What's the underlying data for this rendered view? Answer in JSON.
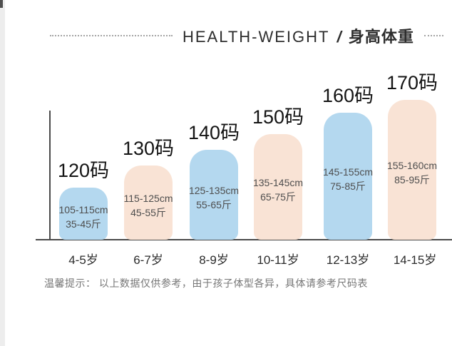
{
  "header": {
    "title_en": "HEALTH-WEIGHT",
    "separator": "/",
    "title_zh": "身高体重"
  },
  "chart_data": {
    "type": "bar",
    "title": "HEALTH-WEIGHT / 身高体重",
    "categories": [
      "4-5岁",
      "6-7岁",
      "8-9岁",
      "10-11岁",
      "12-13岁",
      "14-15岁"
    ],
    "values": [
      120,
      130,
      140,
      150,
      160,
      170
    ],
    "unit": "码",
    "legend": "none",
    "grid": false,
    "colors": {
      "blue": "#b4d8ef",
      "pink": "#f9e3d5",
      "axis": "#4a4a4a"
    },
    "bars": [
      {
        "size_label": "120码",
        "height_cm": "105-115cm",
        "weight_jin": "35-45斤",
        "age": "4-5岁",
        "fill": "#b4d8ef"
      },
      {
        "size_label": "130码",
        "height_cm": "115-125cm",
        "weight_jin": "45-55斤",
        "age": "6-7岁",
        "fill": "#f9e3d5"
      },
      {
        "size_label": "140码",
        "height_cm": "125-135cm",
        "weight_jin": "55-65斤",
        "age": "8-9岁",
        "fill": "#b4d8ef"
      },
      {
        "size_label": "150码",
        "height_cm": "135-145cm",
        "weight_jin": "65-75斤",
        "age": "10-11岁",
        "fill": "#f9e3d5"
      },
      {
        "size_label": "160码",
        "height_cm": "145-155cm",
        "weight_jin": "75-85斤",
        "age": "12-13岁",
        "fill": "#b4d8ef"
      },
      {
        "size_label": "170码",
        "height_cm": "155-160cm",
        "weight_jin": "85-95斤",
        "age": "14-15岁",
        "fill": "#f9e3d5"
      }
    ]
  },
  "footer": {
    "note": "温馨提示： 以上数据仅供参考，由于孩子体型各异，具体请参考尺码表"
  }
}
